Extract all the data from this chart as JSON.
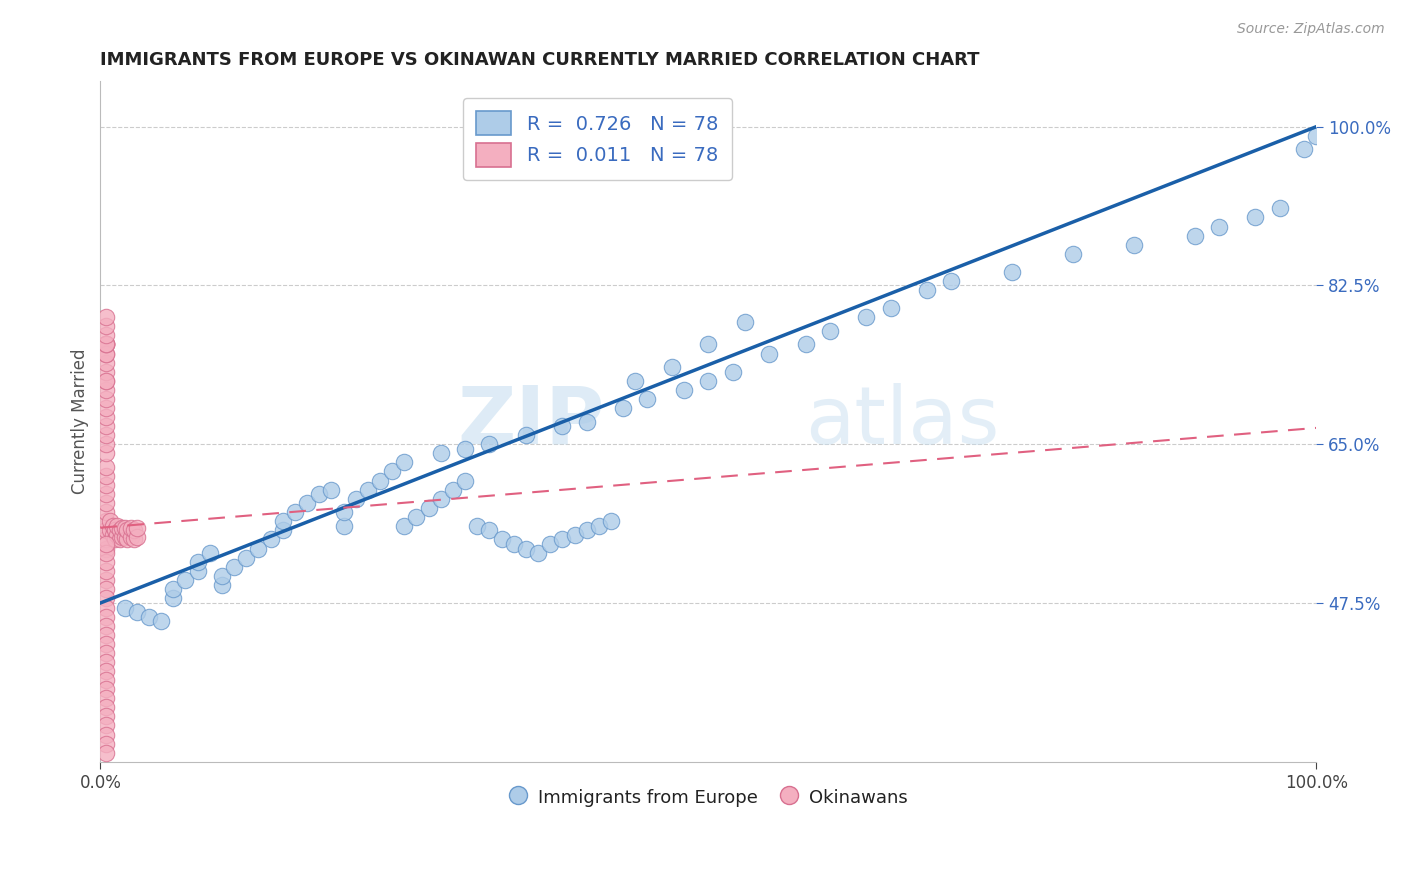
{
  "title": "IMMIGRANTS FROM EUROPE VS OKINAWAN CURRENTLY MARRIED CORRELATION CHART",
  "source": "Source: ZipAtlas.com",
  "ylabel": "Currently Married",
  "xlim": [
    0.0,
    1.0
  ],
  "ylim": [
    0.3,
    1.05
  ],
  "xtick_labels": [
    "0.0%",
    "100.0%"
  ],
  "ytick_labels": [
    "47.5%",
    "65.0%",
    "82.5%",
    "100.0%"
  ],
  "ytick_positions": [
    0.475,
    0.65,
    0.825,
    1.0
  ],
  "legend_r1": "0.726",
  "legend_n1": "78",
  "legend_r2": "0.011",
  "legend_n2": "78",
  "blue_color": "#aecce8",
  "pink_color": "#f4afc0",
  "blue_line_color": "#1a5fa8",
  "pink_line_color": "#e06080",
  "grid_color": "#cccccc",
  "watermark_zip": "ZIP",
  "watermark_atlas": "atlas",
  "blue_line_x": [
    0.0,
    1.0
  ],
  "blue_line_y": [
    0.475,
    1.0
  ],
  "pink_line_x": [
    0.0,
    1.0
  ],
  "pink_line_y": [
    0.558,
    0.668
  ],
  "blue_x": [
    0.02,
    0.03,
    0.04,
    0.05,
    0.06,
    0.06,
    0.07,
    0.08,
    0.08,
    0.09,
    0.1,
    0.1,
    0.11,
    0.12,
    0.13,
    0.14,
    0.15,
    0.15,
    0.16,
    0.17,
    0.18,
    0.19,
    0.2,
    0.2,
    0.21,
    0.22,
    0.23,
    0.24,
    0.25,
    0.26,
    0.27,
    0.28,
    0.29,
    0.3,
    0.31,
    0.32,
    0.33,
    0.34,
    0.35,
    0.36,
    0.37,
    0.38,
    0.39,
    0.4,
    0.41,
    0.42,
    0.25,
    0.28,
    0.3,
    0.32,
    0.35,
    0.38,
    0.4,
    0.43,
    0.45,
    0.48,
    0.5,
    0.52,
    0.55,
    0.58,
    0.6,
    0.63,
    0.65,
    0.68,
    0.7,
    0.75,
    0.8,
    0.85,
    0.9,
    0.92,
    0.95,
    0.97,
    0.99,
    1.0,
    0.44,
    0.47,
    0.5,
    0.53
  ],
  "blue_y": [
    0.47,
    0.465,
    0.46,
    0.455,
    0.48,
    0.49,
    0.5,
    0.51,
    0.52,
    0.53,
    0.495,
    0.505,
    0.515,
    0.525,
    0.535,
    0.545,
    0.555,
    0.565,
    0.575,
    0.585,
    0.595,
    0.6,
    0.56,
    0.575,
    0.59,
    0.6,
    0.61,
    0.62,
    0.56,
    0.57,
    0.58,
    0.59,
    0.6,
    0.61,
    0.56,
    0.555,
    0.545,
    0.54,
    0.535,
    0.53,
    0.54,
    0.545,
    0.55,
    0.555,
    0.56,
    0.565,
    0.63,
    0.64,
    0.645,
    0.65,
    0.66,
    0.67,
    0.675,
    0.69,
    0.7,
    0.71,
    0.72,
    0.73,
    0.75,
    0.76,
    0.775,
    0.79,
    0.8,
    0.82,
    0.83,
    0.84,
    0.86,
    0.87,
    0.88,
    0.89,
    0.9,
    0.91,
    0.975,
    0.99,
    0.72,
    0.735,
    0.76,
    0.785
  ],
  "pink_x": [
    0.005,
    0.005,
    0.005,
    0.005,
    0.005,
    0.005,
    0.005,
    0.005,
    0.005,
    0.005,
    0.005,
    0.005,
    0.005,
    0.005,
    0.005,
    0.005,
    0.005,
    0.005,
    0.005,
    0.005,
    0.005,
    0.005,
    0.005,
    0.005,
    0.005,
    0.005,
    0.008,
    0.008,
    0.01,
    0.01,
    0.012,
    0.012,
    0.014,
    0.014,
    0.016,
    0.016,
    0.018,
    0.018,
    0.02,
    0.02,
    0.022,
    0.022,
    0.025,
    0.025,
    0.028,
    0.028,
    0.03,
    0.03,
    0.005,
    0.005,
    0.005,
    0.005,
    0.005,
    0.005,
    0.005,
    0.005,
    0.005,
    0.005,
    0.005,
    0.005,
    0.005,
    0.005,
    0.005,
    0.005,
    0.005,
    0.005,
    0.005,
    0.005,
    0.005,
    0.005,
    0.005,
    0.005,
    0.005,
    0.005,
    0.005,
    0.005,
    0.005,
    0.005
  ],
  "pink_y": [
    0.535,
    0.545,
    0.555,
    0.565,
    0.575,
    0.585,
    0.595,
    0.605,
    0.615,
    0.625,
    0.5,
    0.49,
    0.48,
    0.47,
    0.46,
    0.45,
    0.44,
    0.43,
    0.42,
    0.41,
    0.4,
    0.39,
    0.38,
    0.37,
    0.36,
    0.35,
    0.555,
    0.565,
    0.55,
    0.56,
    0.545,
    0.555,
    0.55,
    0.56,
    0.545,
    0.555,
    0.548,
    0.558,
    0.548,
    0.558,
    0.545,
    0.555,
    0.548,
    0.558,
    0.545,
    0.555,
    0.548,
    0.558,
    0.64,
    0.65,
    0.66,
    0.67,
    0.68,
    0.69,
    0.7,
    0.71,
    0.72,
    0.73,
    0.74,
    0.75,
    0.76,
    0.34,
    0.33,
    0.32,
    0.31,
    0.72,
    0.76,
    0.51,
    0.52,
    0.53,
    0.54,
    0.76,
    0.75,
    0.76,
    0.76,
    0.77,
    0.78,
    0.79
  ]
}
